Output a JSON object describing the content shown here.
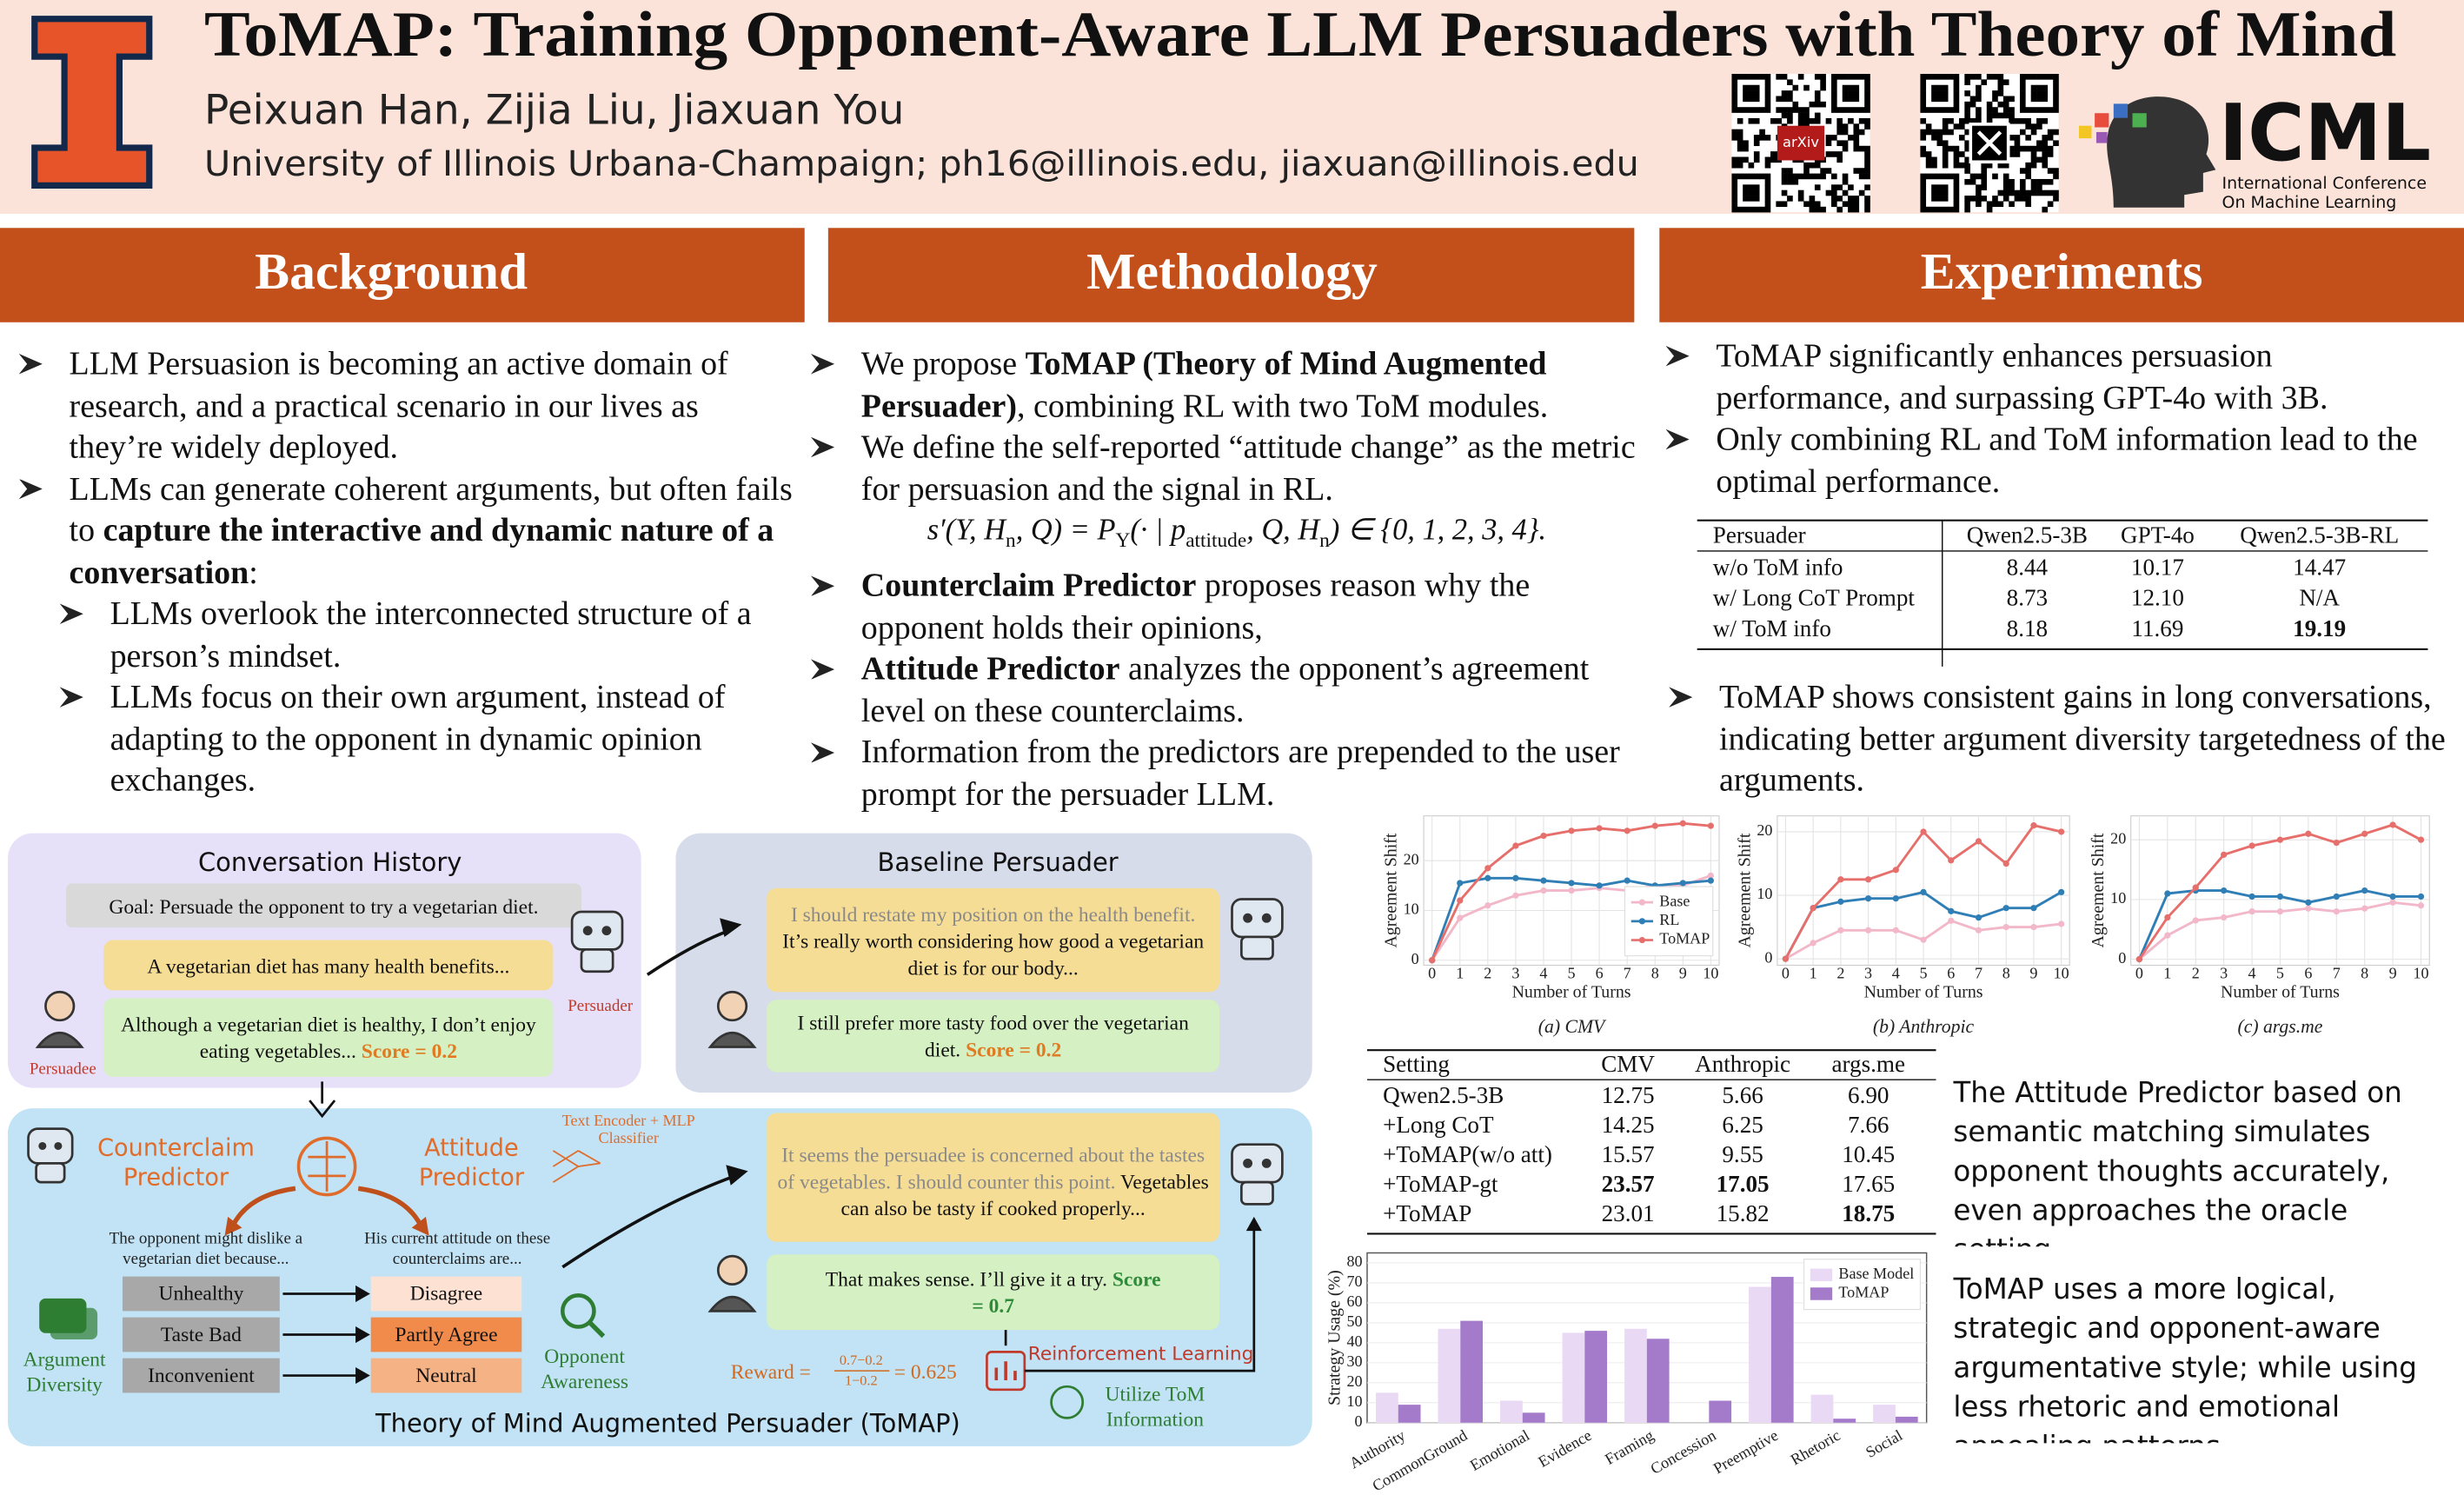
{
  "header": {
    "title": "ToMAP: Training Opponent-Aware LLM Persuaders with Theory of Mind",
    "authors": "Peixuan Han, Zijia Liu, Jiaxuan You",
    "affiliation": "University of Illinois Urbana-Champaign; ph16@illinois.edu, jiaxuan@illinois.edu",
    "qr_label": "arXiv",
    "conference": {
      "name": "ICML",
      "line1": "International Conference",
      "line2": "On Machine Learning"
    }
  },
  "background": {
    "heading": "Background",
    "bullets": [
      {
        "runs": [
          {
            "text": "LLM Persuasion is becoming an active domain of research, and a practical scenario in our lives as they’re widely deployed."
          }
        ]
      },
      {
        "runs": [
          {
            "text": "LLMs can generate coherent arguments, but often fails to "
          },
          {
            "text": "capture the interactive and dynamic nature of  a conversation",
            "bold": true
          },
          {
            "text": ":"
          }
        ],
        "sub": [
          {
            "runs": [
              {
                "text": "LLMs overlook the interconnected structure of a person’s mindset."
              }
            ]
          },
          {
            "runs": [
              {
                "text": "LLMs focus on their own argument, instead of adapting to the opponent in dynamic opinion exchanges."
              }
            ]
          }
        ]
      }
    ]
  },
  "methodology": {
    "heading": "Methodology",
    "bullets": [
      {
        "runs": [
          {
            "text": "We propose "
          },
          {
            "text": "ToMAP (Theory of Mind Augmented Persuader)",
            "bold": true
          },
          {
            "text": ", combining RL with two ToM modules."
          }
        ]
      },
      {
        "runs": [
          {
            "text": "We define the self-reported “attitude change” as the metric for persuasion and the signal in RL."
          }
        ],
        "formula": [
          {
            "text": "s′(Y, H"
          },
          {
            "text": "n",
            "sub": true
          },
          {
            "text": ", Q) = P"
          },
          {
            "text": "Y",
            "sub": true
          },
          {
            "text": "(· | p"
          },
          {
            "text": "attitude",
            "sub": true
          },
          {
            "text": ", Q, H"
          },
          {
            "text": "n",
            "sub": true
          },
          {
            "text": ") ∈ {0, 1, 2, 3, 4}."
          }
        ]
      },
      {
        "runs": [
          {
            "text": "Counterclaim Predictor",
            "bold": true
          },
          {
            "text": " proposes reason why the opponent holds their opinions,"
          }
        ]
      },
      {
        "runs": [
          {
            "text": "Attitude Predictor",
            "bold": true
          },
          {
            "text": " analyzes the opponent’s agreement level on these counterclaims."
          }
        ]
      },
      {
        "runs": [
          {
            "text": "Information from the predictors are prepended to the user prompt for the persuader LLM."
          }
        ]
      }
    ]
  },
  "experiments": {
    "heading": "Experiments",
    "bullets": [
      {
        "runs": [
          {
            "text": "ToMAP significantly enhances persuasion performance, and surpassing GPT-4o with 3B."
          }
        ]
      },
      {
        "runs": [
          {
            "text": "Only combining RL and ToM information lead to the optimal performance."
          }
        ]
      }
    ],
    "table": {
      "header": [
        "Persuader",
        "Qwen2.5-3B",
        "GPT-4o",
        "Qwen2.5-3B-RL"
      ],
      "rows": [
        [
          "w/o ToM info",
          "8.44",
          "10.17",
          "14.47"
        ],
        [
          "w/ Long CoT Prompt",
          "8.73",
          "12.10",
          "N/A"
        ],
        [
          "w/ ToM info",
          "8.18",
          "11.69",
          "19.19"
        ]
      ],
      "bold": [
        [
          2,
          3
        ]
      ]
    },
    "bullets2": [
      {
        "runs": [
          {
            "text": "ToMAP shows consistent gains in long conversations, indicating better argument diversity targetedness of the arguments."
          }
        ]
      }
    ],
    "table2": {
      "header": [
        "Setting",
        "CMV",
        "Anthropic",
        "args.me"
      ],
      "rows": [
        [
          "Qwen2.5-3B",
          "12.75",
          "5.66",
          "6.90"
        ],
        [
          "+Long CoT",
          "14.25",
          "6.25",
          "7.66"
        ],
        [
          "+ToMAP(w/o att)",
          "15.57",
          "9.55",
          "10.45"
        ],
        [
          "+ToMAP-gt",
          "23.57",
          "17.05",
          "17.65"
        ],
        [
          "+ToMAP",
          "23.01",
          "15.82",
          "18.75"
        ]
      ],
      "bold": [
        [
          3,
          1
        ],
        [
          3,
          2
        ],
        [
          4,
          3
        ]
      ]
    },
    "notes": [
      "The Attitude Predictor based on semantic matching simulates opponent thoughts accurately, even approaches the oracle setting.",
      "ToMAP uses a more logical, strategic and opponent-aware argumentative style; while using less rhetoric and emotional appealing patterns."
    ]
  },
  "chart_data": [
    {
      "type": "line",
      "caption": "(a) CMV",
      "x_label": "Number of Turns",
      "y_label": "Agreement Shift",
      "x": [
        0,
        1,
        2,
        3,
        4,
        5,
        6,
        7,
        8,
        9,
        10
      ],
      "xlim": [
        -0.3,
        10.3
      ],
      "xticks": [
        0,
        1,
        2,
        3,
        4,
        5,
        6,
        7,
        8,
        9,
        10
      ],
      "ylim": [
        -1,
        29
      ],
      "yticks": [
        0,
        10,
        20
      ],
      "grid": true,
      "legend": "lower right",
      "series": [
        {
          "name": "Base",
          "color": "#f2b8c9",
          "values": [
            0,
            8.5,
            11,
            13,
            14,
            14,
            14.5,
            14,
            15,
            15,
            17
          ]
        },
        {
          "name": "RL",
          "color": "#2f7fb6",
          "values": [
            0,
            15.5,
            16.5,
            16.5,
            16,
            15.5,
            15,
            16,
            15,
            15.5,
            16
          ]
        },
        {
          "name": "ToMAP",
          "color": "#e66f6c",
          "values": [
            0,
            12,
            18.5,
            23,
            25,
            26,
            26.5,
            26,
            27,
            27.5,
            27
          ]
        }
      ]
    },
    {
      "type": "line",
      "caption": "(b) Anthropic",
      "x_label": "Number of Turns",
      "y_label": "Agreement Shift",
      "x": [
        0,
        1,
        2,
        3,
        4,
        5,
        6,
        7,
        8,
        9,
        10
      ],
      "xlim": [
        -0.3,
        10.3
      ],
      "xticks": [
        0,
        1,
        2,
        3,
        4,
        5,
        6,
        7,
        8,
        9,
        10
      ],
      "ylim": [
        -1,
        22.5
      ],
      "yticks": [
        0,
        10,
        20
      ],
      "grid": true,
      "series": [
        {
          "name": "Base",
          "color": "#f2b8c9",
          "values": [
            0,
            2.5,
            4.5,
            4.5,
            4.5,
            3,
            6,
            4.5,
            5,
            5,
            5.5
          ]
        },
        {
          "name": "RL",
          "color": "#2f7fb6",
          "values": [
            0,
            8,
            9,
            9.5,
            9.5,
            10.5,
            7.5,
            6.5,
            8,
            8,
            10.5
          ]
        },
        {
          "name": "ToMAP",
          "color": "#e66f6c",
          "values": [
            0,
            8,
            12.5,
            12.5,
            14,
            20,
            15.5,
            18.5,
            15,
            21,
            20
          ]
        }
      ]
    },
    {
      "type": "line",
      "caption": "(c) args.me",
      "x_label": "Number of Turns",
      "y_label": "Agreement Shift",
      "x": [
        0,
        1,
        2,
        3,
        4,
        5,
        6,
        7,
        8,
        9,
        10
      ],
      "xlim": [
        -0.3,
        10.3
      ],
      "xticks": [
        0,
        1,
        2,
        3,
        4,
        5,
        6,
        7,
        8,
        9,
        10
      ],
      "ylim": [
        -1,
        24
      ],
      "yticks": [
        0,
        10,
        20
      ],
      "grid": true,
      "series": [
        {
          "name": "Base",
          "color": "#f2b8c9",
          "values": [
            0,
            4,
            6.5,
            7,
            8,
            8,
            8.5,
            8,
            8.5,
            9.5,
            9
          ]
        },
        {
          "name": "RL",
          "color": "#2f7fb6",
          "values": [
            0,
            11,
            11.5,
            11.5,
            10.5,
            10.5,
            9.5,
            10.5,
            11.5,
            10.5,
            10.5
          ]
        },
        {
          "name": "ToMAP",
          "color": "#e66f6c",
          "values": [
            0,
            7,
            12,
            17.5,
            19,
            20,
            21,
            19.5,
            21,
            22.5,
            20
          ]
        }
      ]
    },
    {
      "type": "bar",
      "y_label": "Strategy Usage (%)",
      "categories": [
        "Authority",
        "CommonGround",
        "Emotional",
        "Evidence",
        "Framing",
        "Concession",
        "Preemptive",
        "Rhetoric",
        "Social"
      ],
      "ylim": [
        0,
        85
      ],
      "yticks": [
        0,
        10,
        20,
        30,
        40,
        50,
        60,
        70,
        80
      ],
      "grid": true,
      "legend": "upper right",
      "series": [
        {
          "name": "Base Model",
          "color": "#ead9f4",
          "values": [
            15,
            47,
            11,
            45,
            47,
            0,
            68,
            14,
            9
          ]
        },
        {
          "name": "ToMAP",
          "color": "#a47acb",
          "values": [
            9,
            51,
            5,
            46,
            42,
            11,
            73,
            2,
            3
          ]
        }
      ]
    }
  ],
  "diagram": {
    "history": {
      "title": "Conversation History",
      "goal": "Goal: Persuade the opponent to try a vegetarian diet.",
      "persuader_msg": "A vegetarian diet has many health benefits...",
      "persuadee_msg": [
        {
          "text": "Although a vegetarian diet is healthy, I don’t enjoy eating vegetables... "
        },
        {
          "text": "Score = 0.2",
          "color": "#e07b22",
          "bold": true
        }
      ]
    },
    "roles": {
      "persuader": "Persuader",
      "persuadee": "Persuadee"
    },
    "baseline": {
      "title": "Baseline Persuader",
      "persuader_msg": [
        {
          "text": "I should restate my position on the health benefit. ",
          "color": "#8a8a8a"
        },
        {
          "text": "It’s really worth considering how good a vegetarian diet is for our body..."
        }
      ],
      "persuadee_msg": [
        {
          "text": "I still prefer more tasty food over the vegetarian diet. "
        },
        {
          "text": "Score = 0.2",
          "color": "#e07b22",
          "bold": true
        }
      ]
    },
    "tomap": {
      "title": "Theory of Mind Augmented Persuader (ToMAP)",
      "counterclaim_predictor": "Counterclaim Predictor",
      "attitude_predictor": "Attitude Predictor",
      "encoder": "Text Encoder + MLP Classifier",
      "counterclaim_prompt": "The opponent might dislike a vegetarian diet because...",
      "attitude_prompt": "His current attitude on these counterclaims are...",
      "counterclaims": [
        "Unhealthy",
        "Taste Bad",
        "Inconvenient"
      ],
      "attitudes": [
        "Disagree",
        "Partly Agree",
        "Neutral"
      ],
      "argument_diversity": "Argument Diversity",
      "opponent_awareness": "Opponent Awareness",
      "persuader_msg": [
        {
          "text": "It seems the persuadee is concerned about the tastes of vegetables. I should counter this point. ",
          "color": "#8a8a8a"
        },
        {
          "text": "Vegetables can also be tasty if cooked properly..."
        }
      ],
      "persuadee_msg": [
        {
          "text": "That makes sense. I’ll give it a try. "
        },
        {
          "text": "Score = 0.7",
          "color": "#2e8b3a",
          "bold": true
        }
      ],
      "reward": {
        "label": "Reward =",
        "numerator": "0.7−0.2",
        "denominator": "1−0.2",
        "result": "= 0.625"
      },
      "rl": "Reinforcement Learning",
      "utilize": "Utilize ToM Information"
    }
  }
}
